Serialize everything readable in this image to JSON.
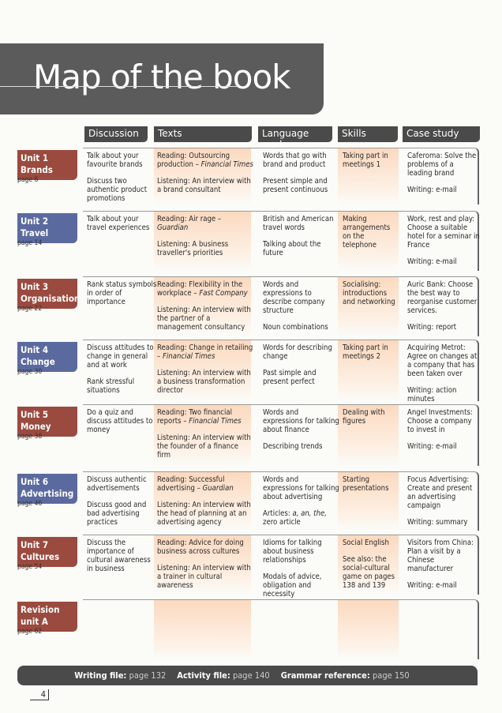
{
  "title": "Map of the book",
  "headers": [
    "Discussion",
    "Texts",
    "Language work",
    "Skills",
    "Case study"
  ],
  "colors": {
    "red": "#9a4a3e",
    "blue": "#5b6a9e",
    "dark": "#4a4a4a",
    "highlight": "#fbd9bf"
  },
  "units": [
    {
      "label": [
        "Unit 1",
        "Brands"
      ],
      "page": "page 6",
      "color": "red",
      "discussion": [
        {
          "text": "Talk about your favourite brands"
        },
        {
          "text": "Discuss two authentic product promotions"
        }
      ],
      "texts": [
        {
          "text": "Reading: Outsourcing production – ",
          "em": "Financial Times"
        },
        {
          "text": "Listening: An interview with a brand consultant"
        }
      ],
      "language": [
        {
          "text": "Words that go with brand and product"
        },
        {
          "text": "Present simple and present continuous"
        }
      ],
      "skills": [
        {
          "text": "Taking part in meetings 1"
        }
      ],
      "case": [
        {
          "text": "Caferoma: Solve the problems of a leading brand"
        },
        {
          "text": "Writing: e-mail"
        }
      ]
    },
    {
      "label": [
        "Unit 2",
        "Travel"
      ],
      "page": "page 14",
      "color": "blue",
      "discussion": [
        {
          "text": "Talk about your travel experiences"
        }
      ],
      "texts": [
        {
          "text": "Reading: Air rage – ",
          "em": "Guardian"
        },
        {
          "text": "Listening: A business traveller's priorities"
        }
      ],
      "language": [
        {
          "text": "British and American travel words"
        },
        {
          "text": "Talking about the future"
        }
      ],
      "skills": [
        {
          "text": "Making arrangements on the telephone"
        }
      ],
      "case": [
        {
          "text": "Work, rest and play: Choose a suitable hotel for a seminar in France"
        },
        {
          "text": "Writing: e-mail"
        }
      ]
    },
    {
      "label": [
        "Unit 3",
        "Organisation"
      ],
      "page": "page 22",
      "color": "red",
      "discussion": [
        {
          "text": "Rank status symbols in order of importance"
        }
      ],
      "texts": [
        {
          "text": "Reading: Flexibility in the workplace – ",
          "em": "Fast Company"
        },
        {
          "text": "Listening: An interview with the partner of a management consultancy"
        }
      ],
      "language": [
        {
          "text": "Words and expressions to describe company structure"
        },
        {
          "text": "Noun combinations"
        }
      ],
      "skills": [
        {
          "text": "Socialising: introductions and networking"
        }
      ],
      "case": [
        {
          "text": "Auric Bank: Choose the best way to reorganise customer services."
        },
        {
          "text": "Writing: report"
        }
      ]
    },
    {
      "label": [
        "Unit 4",
        "Change"
      ],
      "page": "page 30",
      "color": "blue",
      "discussion": [
        {
          "text": "Discuss attitudes to change in general and at work"
        },
        {
          "text": "Rank stressful situations"
        }
      ],
      "texts": [
        {
          "text": "Reading: Change in retailing – ",
          "em": "Financial Times"
        },
        {
          "text": "Listening: An interview with a business transformation director"
        }
      ],
      "language": [
        {
          "text": "Words for describing change"
        },
        {
          "text": "Past simple and present perfect"
        }
      ],
      "skills": [
        {
          "text": "Taking part in meetings 2"
        }
      ],
      "case": [
        {
          "text": "Acquiring Metrot: Agree on changes at a company that has been taken over"
        },
        {
          "text": "Writing: action minutes"
        }
      ]
    },
    {
      "label": [
        "Unit 5",
        "Money"
      ],
      "page": "page 38",
      "color": "red",
      "discussion": [
        {
          "text": "Do a quiz and discuss attitudes to money"
        }
      ],
      "texts": [
        {
          "text": "Reading: Two financial reports – ",
          "em": "Financial Times"
        },
        {
          "text": "Listening: An interview with the founder of a finance firm"
        }
      ],
      "language": [
        {
          "text": "Words and expressions for talking about finance"
        },
        {
          "text": "Describing trends"
        }
      ],
      "skills": [
        {
          "text": "Dealing with figures"
        }
      ],
      "case": [
        {
          "text": "Angel Investments: Choose a company to invest in"
        },
        {
          "text": "Writing: e-mail"
        }
      ]
    },
    {
      "label": [
        "Unit 6",
        "Advertising"
      ],
      "page": "page 46",
      "color": "blue",
      "discussion": [
        {
          "text": "Discuss authentic advertisements"
        },
        {
          "text": "Discuss good and bad advertising practices"
        }
      ],
      "texts": [
        {
          "text": "Reading: Successful advertising – ",
          "em": "Guardian"
        },
        {
          "text": "Listening: An interview with the head of planning at an advertising agency"
        }
      ],
      "language": [
        {
          "text": "Words and expressions for talking about advertising"
        },
        {
          "text": "Articles: ",
          "em": "a, an, the,",
          "after": " zero article"
        }
      ],
      "skills": [
        {
          "text": "Starting presentations"
        }
      ],
      "case": [
        {
          "text": "Focus Advertising: Create and present an advertising campaign"
        },
        {
          "text": "Writing: summary"
        }
      ]
    },
    {
      "label": [
        "Unit 7",
        "Cultures"
      ],
      "page": "page 54",
      "color": "red",
      "discussion": [
        {
          "text": "Discuss the importance of cultural awareness in business"
        }
      ],
      "texts": [
        {
          "text": "Reading: Advice for doing business across cultures"
        },
        {
          "text": "Listening: An interview with a trainer in cultural awareness"
        }
      ],
      "language": [
        {
          "text": "Idioms for talking about business relationships"
        },
        {
          "text": "Modals of advice, obligation and necessity"
        }
      ],
      "skills": [
        {
          "text": "Social English"
        },
        {
          "text": "See also: the social-cultural game on pages 138 and 139"
        }
      ],
      "case": [
        {
          "text": "Visitors from China: Plan a visit by a Chinese manufacturer"
        },
        {
          "text": "Writing: e-mail"
        }
      ]
    },
    {
      "label": [
        "Revision",
        "unit A"
      ],
      "page": "page 62",
      "color": "red",
      "discussion": [],
      "texts": [],
      "language": [],
      "skills": [],
      "case": []
    }
  ],
  "footer": [
    {
      "label": "Writing file:",
      "value": "page 132"
    },
    {
      "label": "Activity file:",
      "value": "page 140"
    },
    {
      "label": "Grammar reference:",
      "value": "page 150"
    }
  ],
  "page_number": "4"
}
